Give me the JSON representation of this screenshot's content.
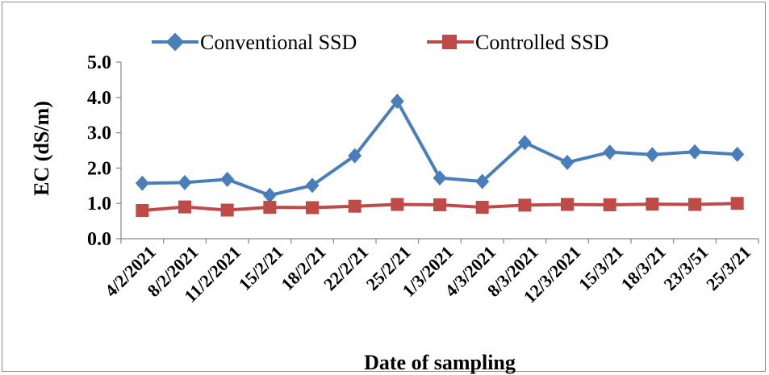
{
  "chart_data": {
    "type": "line",
    "title": "",
    "xlabel": "Date of sampling",
    "ylabel": "EC (dS/m)",
    "ylim": [
      0,
      5
    ],
    "yticks": [
      "0.0",
      "1.0",
      "2.0",
      "3.0",
      "4.0",
      "5.0"
    ],
    "categories": [
      "4/2/2021",
      "8/2/2021",
      "11/2/2021",
      "15/2/21",
      "18/2/21",
      "22/2/21",
      "25/2/21",
      "1/3/2021",
      "4/3/2021",
      "8/3/2021",
      "12/3/2021",
      "15/3/21",
      "18/3/21",
      "23/3/51",
      "25/3/21"
    ],
    "legend_position": "top",
    "grid": false,
    "series": [
      {
        "name": "Conventional SSD",
        "color": "#4A7EBB",
        "marker": "diamond",
        "values": [
          1.57,
          1.59,
          1.68,
          1.23,
          1.51,
          2.35,
          3.89,
          1.72,
          1.62,
          2.72,
          2.16,
          2.45,
          2.38,
          2.46,
          2.39
        ]
      },
      {
        "name": "Controlled SSD",
        "color": "#BE4B48",
        "marker": "square",
        "values": [
          0.8,
          0.9,
          0.81,
          0.89,
          0.88,
          0.92,
          0.97,
          0.96,
          0.89,
          0.95,
          0.97,
          0.96,
          0.98,
          0.97,
          1.0
        ]
      }
    ]
  }
}
